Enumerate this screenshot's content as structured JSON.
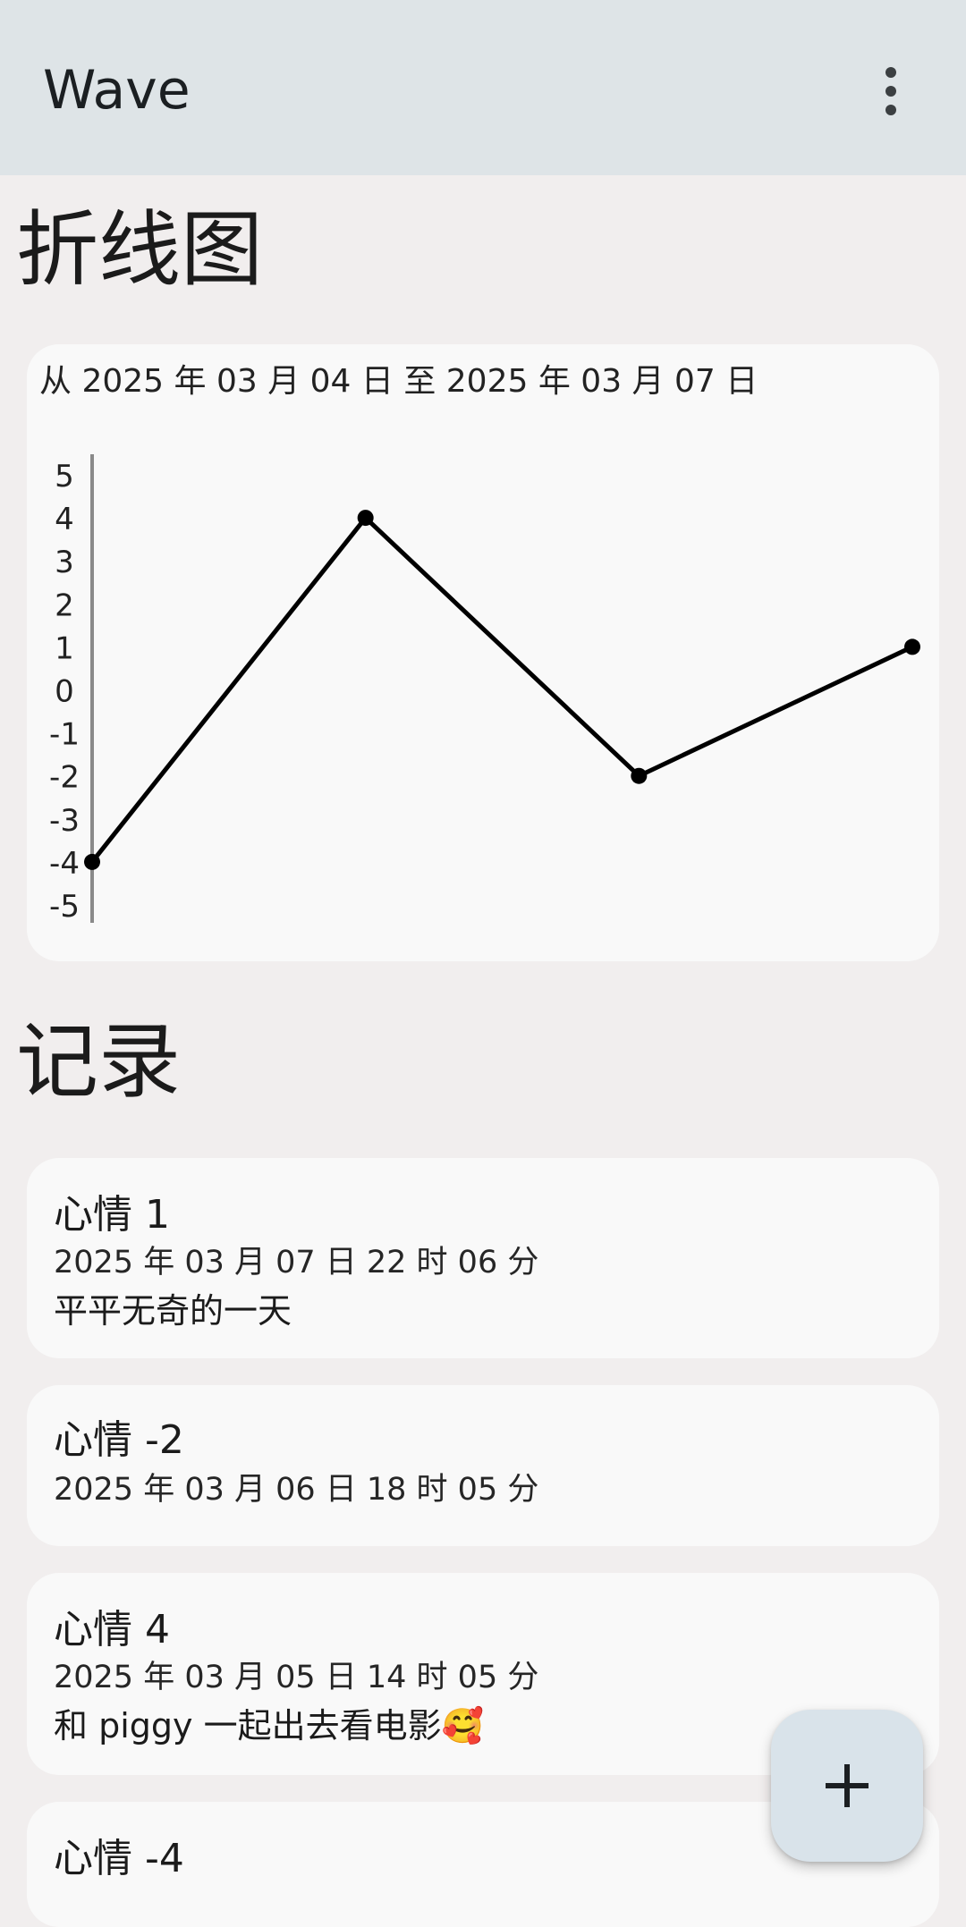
{
  "app": {
    "title": "Wave",
    "menu_icon": "more-vert-icon",
    "colors": {
      "appbar": "#dee4e7",
      "background": "#f1eeee",
      "card": "#f9f9f9",
      "fab": "#d9e3ea",
      "line": "#000000"
    }
  },
  "chart_section": {
    "title": "折线图"
  },
  "chart_data": {
    "type": "line",
    "title": "从 2025 年 03 月 04 日 至 2025 年 03 月 07 日",
    "x": [
      "2025-03-04",
      "2025-03-05",
      "2025-03-06",
      "2025-03-07"
    ],
    "series": [
      {
        "values": [
          -4,
          4,
          -2,
          1
        ]
      }
    ],
    "ylim": [
      -5,
      5
    ],
    "yticks": [
      "5",
      "4",
      "3",
      "2",
      "1",
      "0",
      "-1",
      "-2",
      "-3",
      "-4",
      "-5"
    ],
    "xlabel": "",
    "ylabel": "",
    "grid": false
  },
  "records_section": {
    "title": "记录"
  },
  "records": [
    {
      "mood": "心情 1",
      "time": "2025 年 03 月 07 日 22 时 06 分",
      "note": "平平无奇的一天"
    },
    {
      "mood": "心情 -2",
      "time": "2025 年 03 月 06 日 18 时 05 分",
      "note": ""
    },
    {
      "mood": "心情 4",
      "time": "2025 年 03 月 05 日 14 时 05 分",
      "note": "和 piggy 一起出去看电影🥰"
    },
    {
      "mood": "心情 -4",
      "time": "",
      "note": ""
    }
  ],
  "fab": {
    "icon": "plus-icon"
  }
}
